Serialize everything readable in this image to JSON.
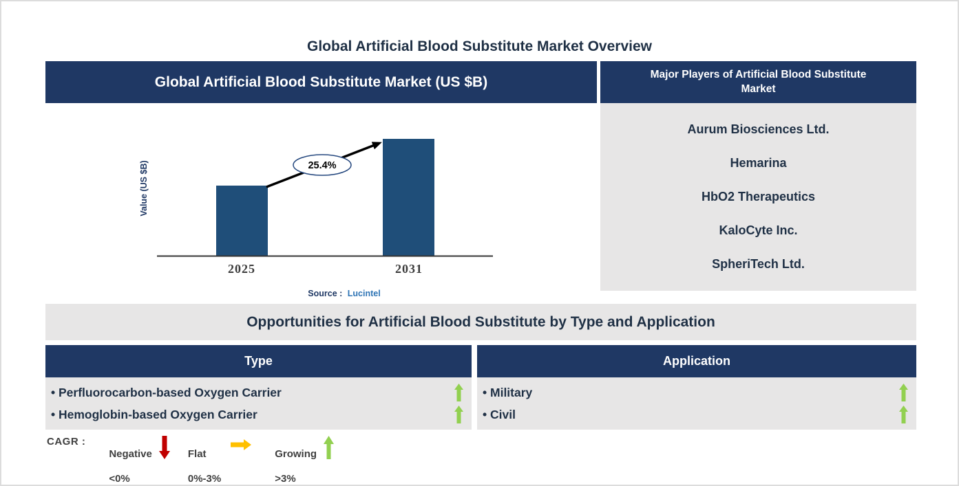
{
  "colors": {
    "navy_header": "#1F3864",
    "bar_blue": "#1F4E79",
    "panel_gray": "#E7E6E6",
    "growing_green": "#92D050",
    "flat_yellow": "#FFC000",
    "negative_red": "#C00000",
    "axis_gray": "#3B3B3B",
    "source_blue": "#2E74B5",
    "dark_text": "#1F3045"
  },
  "page": {
    "title": "Global Artificial Blood Substitute Market Overview"
  },
  "market_chart": {
    "header": "Global Artificial Blood Substitute Market (US $B)"
  },
  "chart_data": {
    "type": "bar",
    "title": "Global Artificial Blood Substitute Market (US $B)",
    "categories": [
      "2025",
      "2031"
    ],
    "values": [
      0.6,
      1.0
    ],
    "values_estimated": true,
    "ylim": [
      0,
      1.05
    ],
    "ylabel": "Value (US $B)",
    "xlabel": "",
    "grid": false,
    "legend_shown": false,
    "annotation": "25.4%",
    "source_prefix": "Source :",
    "source_name": "Lucintel"
  },
  "major_players": {
    "header": "Major Players of Artificial Blood Substitute Market",
    "players": [
      "Aurum Biosciences Ltd.",
      "Hemarina",
      "HbO2 Therapeutics",
      "KaloCyte Inc.",
      "SpheriTech Ltd."
    ]
  },
  "opportunities": {
    "title": "Opportunities for Artificial Blood Substitute by Type and Application",
    "columns": [
      {
        "header": "Type",
        "items": [
          {
            "label": "Perfluorocarbon-based Oxygen Carrier",
            "trend": "Growing"
          },
          {
            "label": "Hemoglobin-based Oxygen Carrier",
            "trend": "Growing"
          }
        ]
      },
      {
        "header": "Application",
        "items": [
          {
            "label": "Military",
            "trend": "Growing"
          },
          {
            "label": "Civil",
            "trend": "Growing"
          }
        ]
      }
    ]
  },
  "legend": {
    "label": "CAGR :",
    "entries": [
      {
        "name": "Negative",
        "range": "<0%",
        "icon": "down-arrow-icon",
        "color": "#C00000"
      },
      {
        "name": "Flat",
        "range": "0%-3%",
        "icon": "right-arrow-icon",
        "color": "#FFC000"
      },
      {
        "name": "Growing",
        "range": ">3%",
        "icon": "up-arrow-icon",
        "color": "#92D050"
      }
    ]
  }
}
